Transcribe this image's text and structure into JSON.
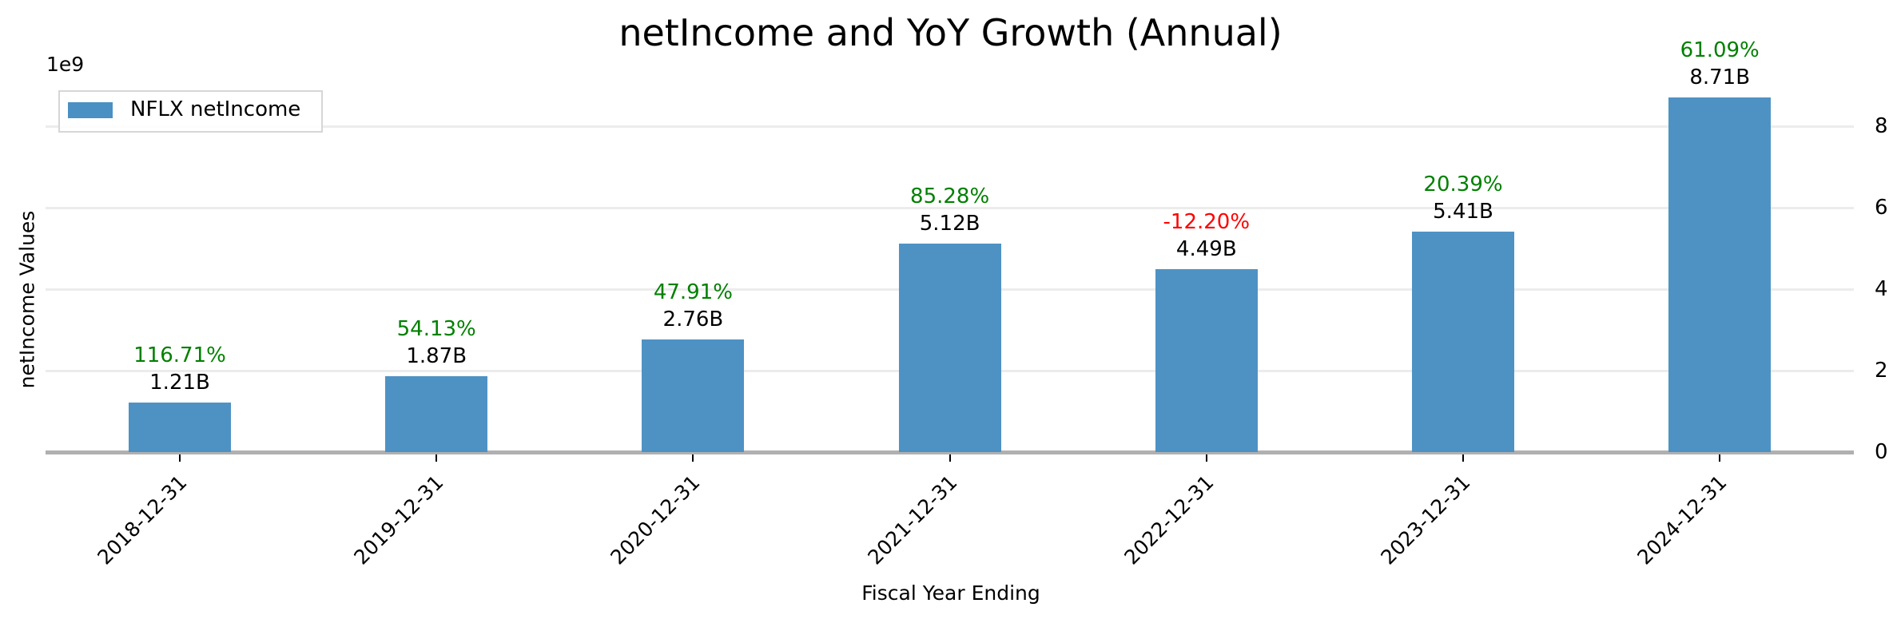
{
  "chart": {
    "title": "netIncome and YoY Growth (Annual)",
    "exponent_label": "1e9",
    "ylabel": "netIncome Values",
    "xlabel": "Fiscal Year Ending",
    "legend_label": "NFLX netIncome",
    "bar_color": "#4a90c3",
    "positive_color": "#008000",
    "negative_color": "#ff0000",
    "yticks": [
      "0",
      "2",
      "4",
      "6",
      "8"
    ],
    "bars": [
      {
        "date": "2018-12-31",
        "value_label": "1.21B",
        "growth_label": "116.71%"
      },
      {
        "date": "2019-12-31",
        "value_label": "1.87B",
        "growth_label": "54.13%"
      },
      {
        "date": "2020-12-31",
        "value_label": "2.76B",
        "growth_label": "47.91%"
      },
      {
        "date": "2021-12-31",
        "value_label": "5.12B",
        "growth_label": "85.28%"
      },
      {
        "date": "2022-12-31",
        "value_label": "4.49B",
        "growth_label": "-12.20%"
      },
      {
        "date": "2023-12-31",
        "value_label": "5.41B",
        "growth_label": "20.39%"
      },
      {
        "date": "2024-12-31",
        "value_label": "8.71B",
        "growth_label": "61.09%"
      }
    ]
  },
  "chart_data": {
    "type": "bar",
    "title": "netIncome and YoY Growth (Annual)",
    "xlabel": "Fiscal Year Ending",
    "ylabel": "netIncome Values",
    "y_scale_note": "1e9",
    "categories": [
      "2018-12-31",
      "2019-12-31",
      "2020-12-31",
      "2021-12-31",
      "2022-12-31",
      "2023-12-31",
      "2024-12-31"
    ],
    "series": [
      {
        "name": "NFLX netIncome",
        "values": [
          1210000000.0,
          1870000000.0,
          2760000000.0,
          5120000000.0,
          4490000000.0,
          5410000000.0,
          8710000000.0
        ]
      }
    ],
    "annotations": {
      "value_labels": [
        "1.21B",
        "1.87B",
        "2.76B",
        "5.12B",
        "4.49B",
        "5.41B",
        "8.71B"
      ],
      "yoy_growth_pct": [
        116.71,
        54.13,
        47.91,
        85.28,
        -12.2,
        20.39,
        61.09
      ]
    },
    "yticks": [
      0,
      2,
      4,
      6,
      8
    ],
    "ylim": [
      0,
      9.0
    ],
    "y_axis_position": "right",
    "grid": "horizontal",
    "legend_position": "upper left"
  }
}
